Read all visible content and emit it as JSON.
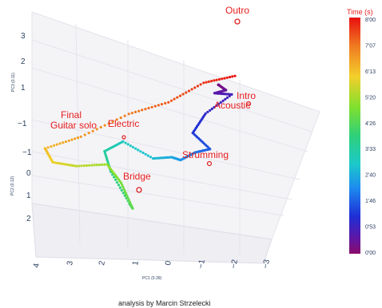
{
  "chart_data": {
    "type": "scatter",
    "projection": "3d",
    "xlabel": "PC1 (0.39)",
    "ylabel": "PC2 (0.12)",
    "zlabel": "PC3 (0.11)",
    "x_ticks": [
      "4",
      "3",
      "2",
      "1",
      "0",
      "−1",
      "−2",
      "−3"
    ],
    "y_ticks": [
      "−1",
      "0",
      "1",
      "2"
    ],
    "z_ticks": [
      "3",
      "2",
      "1",
      "−1"
    ],
    "colorbar": {
      "title": "Time  (s)",
      "ticks": [
        "8'00",
        "7'07",
        "6'13",
        "5'20",
        "4'26",
        "3'33",
        "2'40",
        "1'46",
        "0'53",
        "0'00"
      ],
      "colors": [
        "#e80f0f",
        "#f07a22",
        "#f3cf2a",
        "#7fe02e",
        "#2ed07a",
        "#1cc9c9",
        "#1d8cf0",
        "#1e2fd6",
        "#5b17a8",
        "#8b0c6a"
      ]
    },
    "annotations": [
      {
        "label": "Outro",
        "time_s": 480
      },
      {
        "label": "Intro",
        "time_s": 0
      },
      {
        "label": "Acoustic",
        "time_s": 40
      },
      {
        "label": "Strumming",
        "time_s": 130
      },
      {
        "label": "Bridge",
        "time_s": 270
      },
      {
        "label": "Electric",
        "time_s": 300
      },
      {
        "label": "Final",
        "time_s": 400
      },
      {
        "label": "Guitar solo",
        "time_s": 400
      }
    ],
    "series": [
      {
        "values": [
          [
            -1.6,
            0.0,
            2.3
          ],
          [
            -1.5,
            -0.4,
            2.1
          ],
          [
            -1.7,
            -0.6,
            1.8
          ],
          [
            -1.4,
            -0.3,
            1.9
          ],
          [
            -1.9,
            -0.5,
            1.7
          ],
          [
            -1.2,
            0.1,
            1.5
          ],
          [
            -0.9,
            0.6,
            1.2
          ],
          [
            -1.5,
            0.9,
            0.8
          ],
          [
            -1.1,
            1.2,
            0.9
          ],
          [
            -0.6,
            1.0,
            0.6
          ],
          [
            -0.2,
            0.4,
            0.4
          ],
          [
            0.5,
            -0.2,
            0.1
          ],
          [
            1.6,
            -1.0,
            0.3
          ],
          [
            2.2,
            -1.1,
            0.0
          ],
          [
            1.9,
            -0.6,
            -0.4
          ],
          [
            1.0,
            1.0,
            -0.6
          ],
          [
            0.8,
            1.5,
            -0.5
          ],
          [
            1.4,
            0.3,
            -0.3
          ],
          [
            2.0,
            -0.5,
            -0.1
          ],
          [
            2.9,
            -0.2,
            0.1
          ],
          [
            3.6,
            0.0,
            0.4
          ],
          [
            3.9,
            -0.3,
            0.7
          ],
          [
            2.8,
            -0.4,
            0.9
          ],
          [
            1.4,
            -0.9,
            1.2
          ],
          [
            0.1,
            -0.6,
            1.6
          ],
          [
            -1.0,
            -0.6,
            2.1
          ],
          [
            -2.2,
            0.5,
            2.8
          ]
        ]
      }
    ]
  },
  "credit": "analysis by Marcin Strzelecki"
}
